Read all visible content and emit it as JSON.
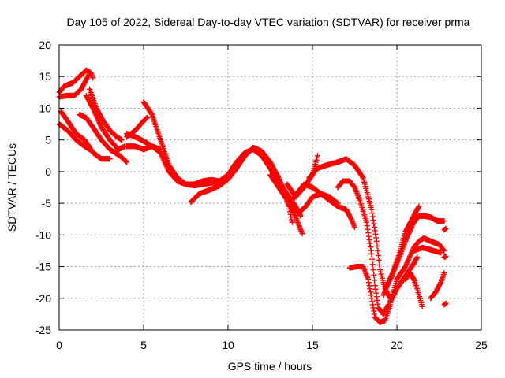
{
  "chart_data": {
    "type": "scatter",
    "title": "Day 105 of 2022, Sidereal Day-to-day VTEC variation (SDTVAR) for receiver prma",
    "xlabel": "GPS time / hours",
    "ylabel": "SDTVAR / TECUs",
    "xlim": [
      0,
      25
    ],
    "ylim": [
      -25,
      20
    ],
    "xticks": [
      0,
      5,
      10,
      15,
      20,
      25
    ],
    "yticks": [
      -25,
      -20,
      -15,
      -10,
      -5,
      0,
      5,
      10,
      15,
      20
    ],
    "grid": true,
    "marker": "plus",
    "color": "#ff0000",
    "series": [
      {
        "values": [
          [
            0,
            12.5
          ],
          [
            0.3,
            13.5
          ],
          [
            0.8,
            14
          ],
          [
            1.2,
            15
          ],
          [
            1.6,
            16
          ],
          [
            1.9,
            15.5
          ],
          [
            2.0,
            14.8
          ]
        ]
      },
      {
        "values": [
          [
            0,
            11.8
          ],
          [
            0.5,
            12
          ],
          [
            0.9,
            12
          ],
          [
            1.3,
            13
          ],
          [
            1.6,
            14.5
          ],
          [
            1.8,
            15.5
          ]
        ]
      },
      {
        "values": [
          [
            1.8,
            13
          ],
          [
            2.2,
            10
          ],
          [
            2.6,
            8
          ],
          [
            3.0,
            6.5
          ],
          [
            3.4,
            5.5
          ],
          [
            3.7,
            5
          ]
        ]
      },
      {
        "values": [
          [
            1.6,
            12
          ],
          [
            2.0,
            10
          ],
          [
            2.5,
            7
          ],
          [
            3.0,
            5
          ],
          [
            3.5,
            3.5
          ],
          [
            3.9,
            4
          ]
        ]
      },
      {
        "values": [
          [
            1.2,
            9
          ],
          [
            1.6,
            8.5
          ],
          [
            2.0,
            7
          ],
          [
            2.5,
            5
          ],
          [
            3.0,
            3.5
          ],
          [
            3.6,
            2.5
          ],
          [
            4.0,
            1.5
          ]
        ]
      },
      {
        "values": [
          [
            0.1,
            9.5
          ],
          [
            0.5,
            8
          ],
          [
            1.0,
            6
          ],
          [
            1.5,
            5
          ],
          [
            2.0,
            3
          ],
          [
            2.5,
            2
          ],
          [
            3.0,
            2
          ]
        ]
      },
      {
        "values": [
          [
            0,
            7.5
          ],
          [
            0.5,
            6.5
          ],
          [
            1.0,
            5
          ],
          [
            1.5,
            4
          ],
          [
            1.8,
            3.5
          ]
        ]
      },
      {
        "values": [
          [
            4.0,
            5.5
          ],
          [
            4.5,
            6.5
          ],
          [
            5.0,
            8
          ],
          [
            5.2,
            8.5
          ]
        ]
      },
      {
        "values": [
          [
            4.0,
            4
          ],
          [
            4.5,
            4
          ],
          [
            5.0,
            3.5
          ],
          [
            5.5,
            4
          ],
          [
            6.0,
            3.5
          ]
        ]
      },
      {
        "values": [
          [
            4.0,
            6
          ],
          [
            4.5,
            5.5
          ],
          [
            5.0,
            4.8
          ],
          [
            5.5,
            4
          ],
          [
            6.0,
            3
          ],
          [
            6.5,
            0
          ],
          [
            7.0,
            -1.5
          ],
          [
            7.5,
            -2
          ],
          [
            8.0,
            -2.2
          ],
          [
            8.5,
            -2
          ],
          [
            9.0,
            -1.8
          ],
          [
            9.5,
            -1.5
          ],
          [
            10.0,
            -0.5
          ],
          [
            10.5,
            1.5
          ],
          [
            11.0,
            3
          ],
          [
            11.5,
            3.5
          ],
          [
            12.0,
            2.5
          ],
          [
            12.5,
            0.5
          ],
          [
            13.0,
            -1.5
          ],
          [
            13.5,
            -3.5
          ],
          [
            14.0,
            -5.5
          ],
          [
            14.3,
            -7
          ]
        ]
      },
      {
        "values": [
          [
            5.0,
            11
          ],
          [
            5.5,
            9
          ],
          [
            6.0,
            5
          ],
          [
            6.5,
            1
          ],
          [
            7.0,
            -1
          ],
          [
            7.5,
            -2
          ],
          [
            8.0,
            -2
          ],
          [
            8.5,
            -1.5
          ],
          [
            9.0,
            -1.3
          ],
          [
            9.5,
            -1.5
          ]
        ]
      },
      {
        "values": [
          [
            7.8,
            -4.8
          ],
          [
            8.3,
            -3.5
          ],
          [
            9.0,
            -2.8
          ],
          [
            9.5,
            -2.2
          ],
          [
            10.0,
            -1.2
          ],
          [
            10.5,
            0.5
          ],
          [
            11.0,
            2.5
          ],
          [
            11.5,
            3.8
          ],
          [
            12.0,
            3.2
          ],
          [
            12.5,
            1.5
          ],
          [
            13.0,
            -1
          ],
          [
            13.3,
            -3
          ],
          [
            13.6,
            -5.5
          ],
          [
            13.8,
            -8
          ]
        ]
      },
      {
        "values": [
          [
            12.5,
            -0.5
          ],
          [
            13.0,
            -2.5
          ],
          [
            13.5,
            -4.5
          ],
          [
            13.9,
            -6.5
          ],
          [
            14.2,
            -8.5
          ],
          [
            14.4,
            -9.8
          ]
        ]
      },
      {
        "values": [
          [
            13.5,
            -2
          ],
          [
            14.0,
            -4
          ],
          [
            14.5,
            -2.5
          ],
          [
            15.0,
            -0.5
          ],
          [
            15.3,
            2.5
          ]
        ]
      },
      {
        "values": [
          [
            13.8,
            -4.5
          ],
          [
            14.2,
            -3
          ],
          [
            14.5,
            -2
          ],
          [
            15.0,
            -2.5
          ],
          [
            15.5,
            -3.5
          ],
          [
            16.0,
            -4.5
          ],
          [
            16.5,
            -5.5
          ],
          [
            17.0,
            -6
          ],
          [
            17.3,
            -7.5
          ],
          [
            17.5,
            -8.8
          ]
        ]
      },
      {
        "values": [
          [
            14.2,
            -6.5
          ],
          [
            14.6,
            -5.5
          ],
          [
            15.0,
            -4
          ],
          [
            15.5,
            -3.5
          ],
          [
            16.0,
            -4
          ],
          [
            16.5,
            -5
          ]
        ]
      },
      {
        "values": [
          [
            14.8,
            -1
          ],
          [
            15.3,
            0.5
          ],
          [
            15.8,
            1
          ],
          [
            16.5,
            1.5
          ],
          [
            17.0,
            2
          ],
          [
            17.5,
            1
          ],
          [
            18.0,
            -1
          ],
          [
            18.5,
            -6
          ],
          [
            18.8,
            -11
          ],
          [
            19.0,
            -15.5
          ],
          [
            19.3,
            -18.5
          ],
          [
            19.6,
            -20
          ]
        ]
      },
      {
        "values": [
          [
            16.5,
            -2.5
          ],
          [
            16.8,
            -1.5
          ],
          [
            17.2,
            -1.5
          ],
          [
            17.5,
            -2.5
          ],
          [
            17.8,
            -4.5
          ],
          [
            18.2,
            -8
          ],
          [
            18.5,
            -13
          ],
          [
            18.7,
            -18
          ],
          [
            18.9,
            -21.5
          ],
          [
            19.2,
            -22.5
          ],
          [
            19.5,
            -21
          ]
        ]
      },
      {
        "values": [
          [
            17.2,
            -15.2
          ],
          [
            17.6,
            -15
          ],
          [
            18.0,
            -15
          ],
          [
            18.3,
            -17
          ],
          [
            18.5,
            -20
          ],
          [
            18.7,
            -23
          ],
          [
            19.0,
            -23.8
          ],
          [
            19.3,
            -23.5
          ],
          [
            19.6,
            -21
          ],
          [
            20.0,
            -17
          ],
          [
            20.5,
            -15
          ],
          [
            21.0,
            -12
          ],
          [
            21.3,
            -11
          ],
          [
            21.6,
            -10.5
          ],
          [
            22.0,
            -11
          ],
          [
            22.5,
            -11.5
          ],
          [
            22.8,
            -12.5
          ]
        ]
      },
      {
        "values": [
          [
            19.2,
            -19.5
          ],
          [
            19.5,
            -17.5
          ],
          [
            20.0,
            -14.5
          ],
          [
            20.5,
            -11
          ],
          [
            21.0,
            -8
          ],
          [
            21.3,
            -7
          ],
          [
            21.6,
            -7
          ],
          [
            22.0,
            -7.2
          ],
          [
            22.4,
            -7.8
          ],
          [
            22.8,
            -7.8
          ]
        ]
      },
      {
        "values": [
          [
            19.6,
            -20.5
          ],
          [
            20.0,
            -18.5
          ],
          [
            20.5,
            -16.5
          ],
          [
            21.0,
            -14.5
          ],
          [
            21.2,
            -13.5
          ]
        ]
      },
      {
        "values": [
          [
            19.3,
            -18.5
          ],
          [
            19.7,
            -16.5
          ],
          [
            20.2,
            -12.5
          ],
          [
            20.5,
            -9.5
          ],
          [
            20.8,
            -8
          ],
          [
            21.0,
            -7
          ],
          [
            21.2,
            -6
          ],
          [
            21.3,
            -5.5
          ]
        ]
      },
      {
        "values": [
          [
            20.5,
            -17
          ],
          [
            20.8,
            -16
          ],
          [
            21.0,
            -17
          ],
          [
            21.2,
            -18.5
          ],
          [
            21.5,
            -21.3
          ]
        ]
      },
      {
        "values": [
          [
            21.0,
            -12.5
          ],
          [
            21.5,
            -12
          ],
          [
            21.8,
            -12.2
          ],
          [
            22.2,
            -12.5
          ],
          [
            22.6,
            -12.8
          ]
        ]
      },
      {
        "values": [
          [
            22.0,
            -20
          ],
          [
            22.3,
            -19
          ],
          [
            22.6,
            -17.5
          ],
          [
            22.8,
            -16
          ]
        ]
      },
      {
        "values": [
          [
            22.8,
            -21
          ],
          [
            22.9,
            -20.8
          ]
        ]
      },
      {
        "values": [
          [
            22.8,
            -9.2
          ],
          [
            22.9,
            -9
          ]
        ]
      },
      {
        "values": [
          [
            22.8,
            -13.5
          ],
          [
            22.9,
            -13.4
          ]
        ]
      }
    ]
  }
}
